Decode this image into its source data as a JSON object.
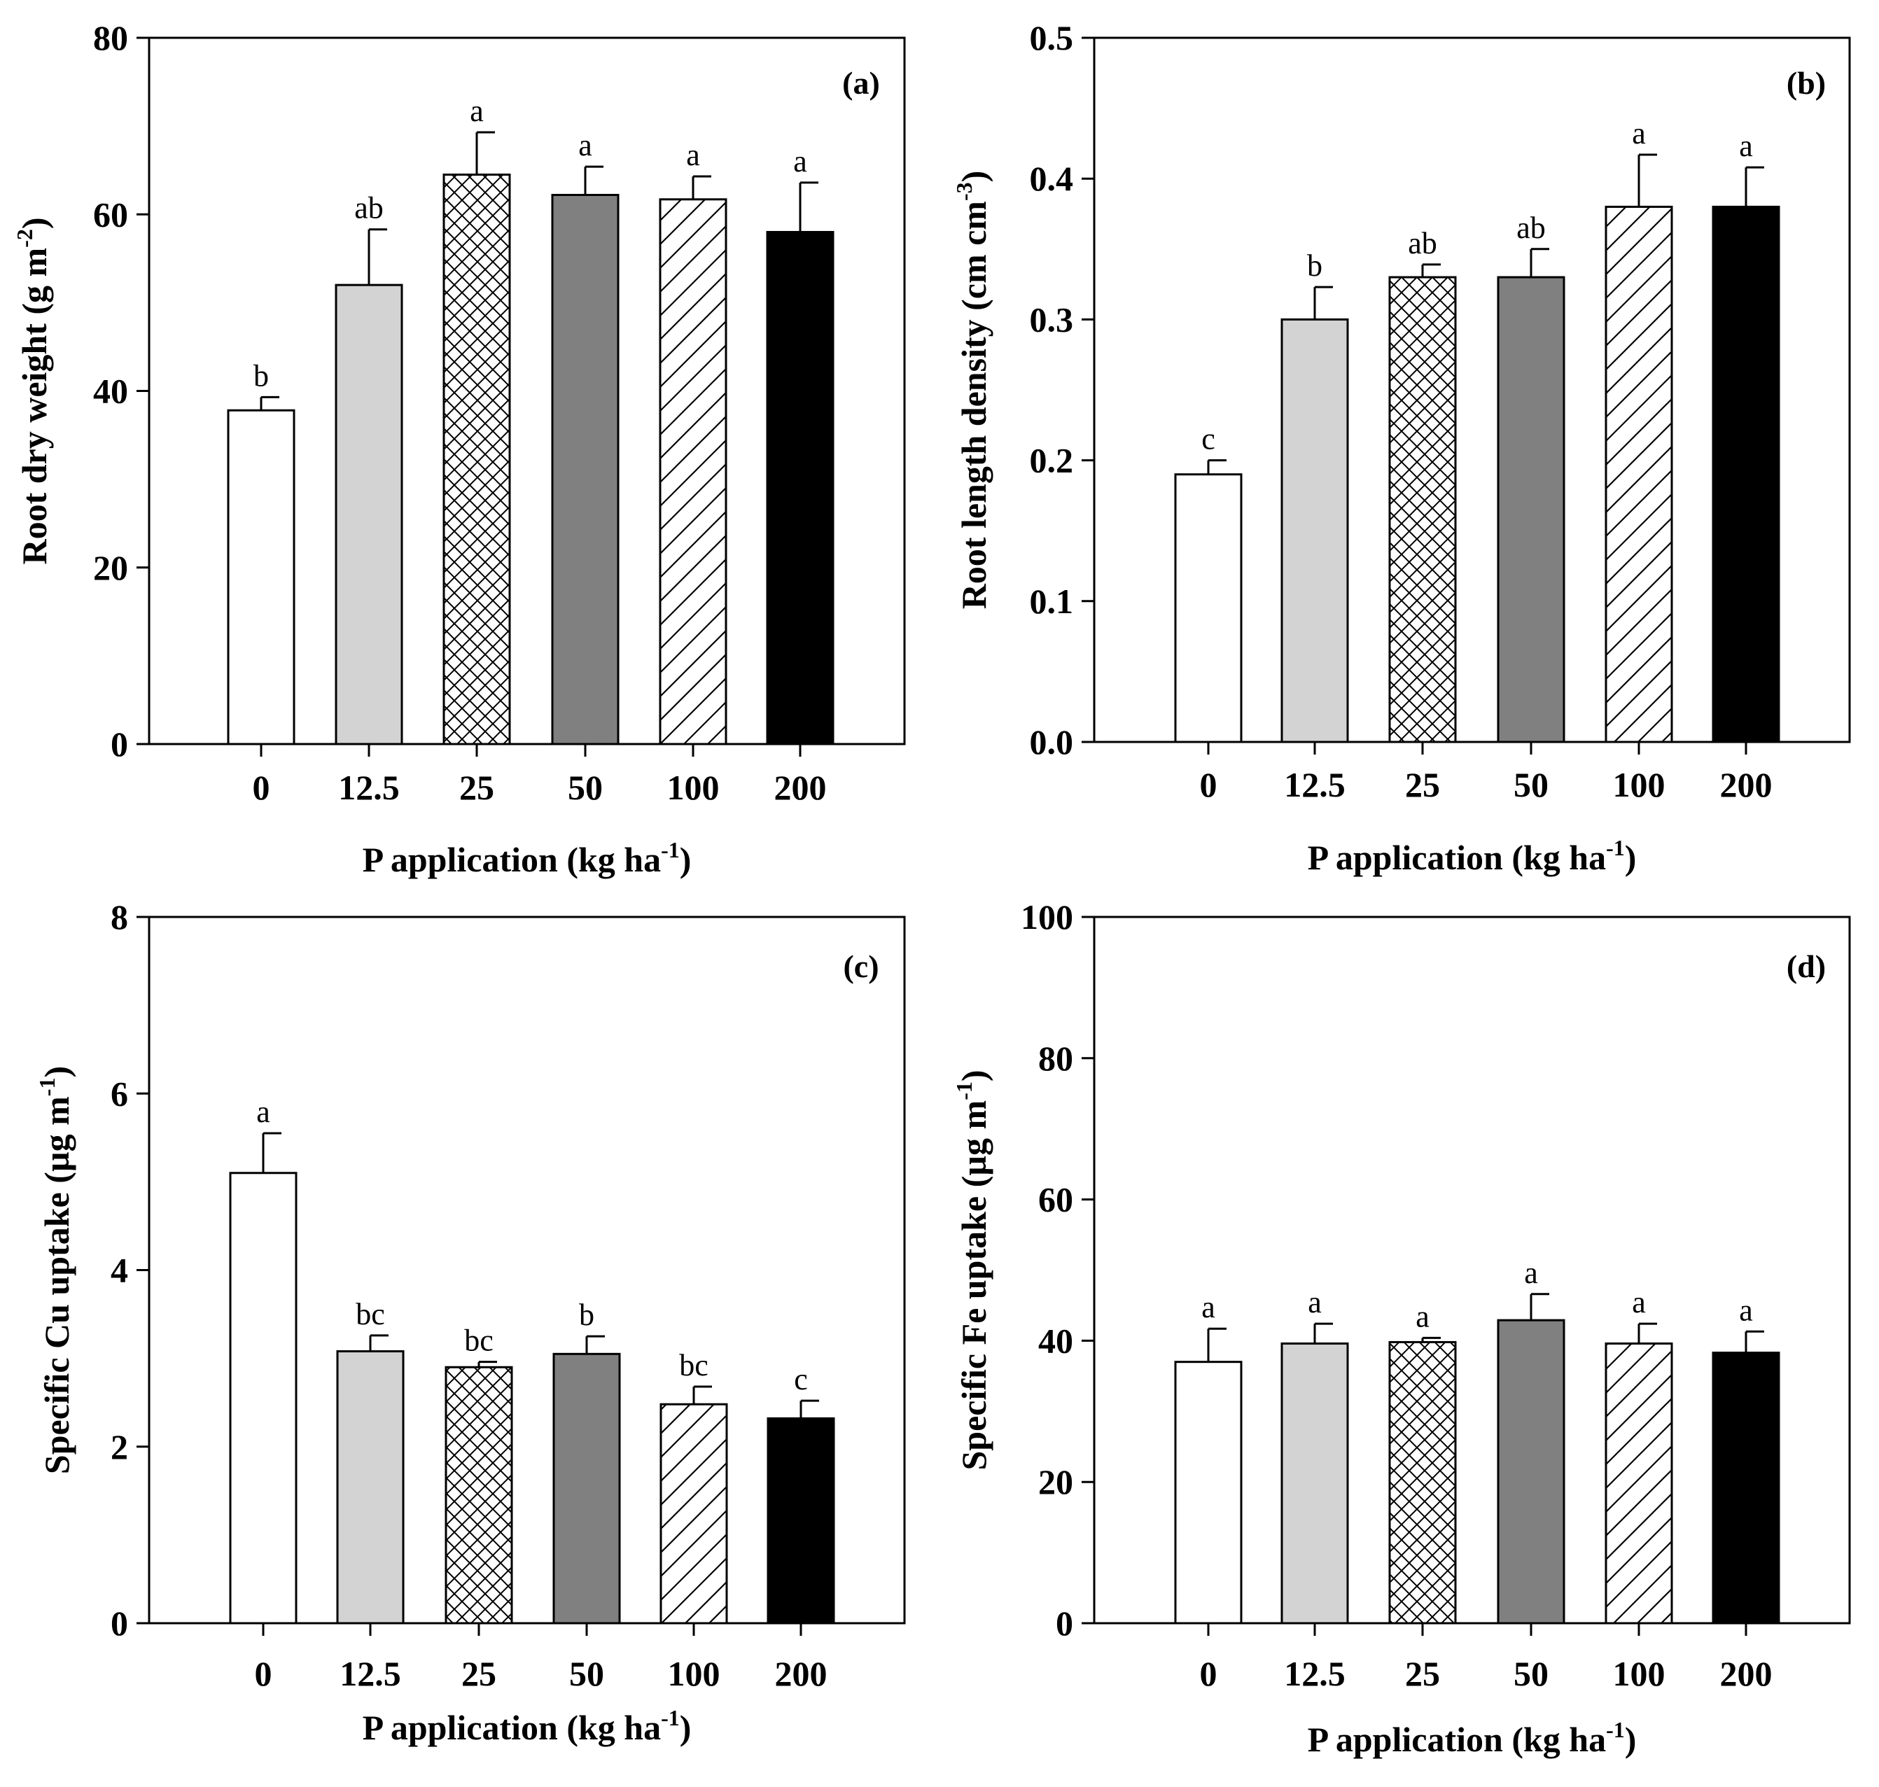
{
  "chart_data": [
    {
      "type": "bar",
      "panel_label": "(a)",
      "categories": [
        "0",
        "12.5",
        "25",
        "50",
        "100",
        "200"
      ],
      "values": [
        37.8,
        52.0,
        64.5,
        62.2,
        61.7,
        58.0
      ],
      "errors": [
        1.5,
        6.3,
        4.8,
        3.2,
        2.6,
        5.6
      ],
      "significance": [
        "b",
        "ab",
        "a",
        "a",
        "a",
        "a"
      ],
      "ylim": [
        0,
        80
      ],
      "yticks": [
        "0",
        "20",
        "40",
        "60",
        "80"
      ],
      "ylabel": {
        "text": "Root dry weight (g m",
        "sup": "-2",
        "tail": ")"
      },
      "xlabel": {
        "text": "P application (kg ha",
        "sup": "-1",
        "tail": ")"
      },
      "bar_styles": [
        "white",
        "light-gray",
        "crosshatch",
        "gray",
        "diagonal",
        "black"
      ],
      "colors": {
        "light_gray": "#d3d3d3",
        "gray": "#808080",
        "black": "#000000",
        "white": "#ffffff"
      }
    },
    {
      "type": "bar",
      "panel_label": "(b)",
      "categories": [
        "0",
        "12.5",
        "25",
        "50",
        "100",
        "200"
      ],
      "values": [
        0.19,
        0.3,
        0.33,
        0.33,
        0.38,
        0.38
      ],
      "errors": [
        0.01,
        0.023,
        0.009,
        0.02,
        0.037,
        0.028
      ],
      "significance": [
        "c",
        "b",
        "ab",
        "ab",
        "a",
        "a"
      ],
      "ylim": [
        0,
        0.5
      ],
      "yticks": [
        "0.0",
        "0.1",
        "0.2",
        "0.3",
        "0.4",
        "0.5"
      ],
      "ylabel": {
        "text": "Root length density (cm cm",
        "sup": "-3",
        "tail": ")"
      },
      "xlabel": {
        "text": "P application (kg ha",
        "sup": "-1",
        "tail": ")"
      },
      "bar_styles": [
        "white",
        "light-gray",
        "crosshatch",
        "gray",
        "diagonal",
        "black"
      ],
      "colors": {
        "light_gray": "#d3d3d3",
        "gray": "#808080",
        "black": "#000000",
        "white": "#ffffff"
      }
    },
    {
      "type": "bar",
      "panel_label": "(c)",
      "categories": [
        "0",
        "12.5",
        "25",
        "50",
        "100",
        "200"
      ],
      "values": [
        5.1,
        3.08,
        2.9,
        3.05,
        2.48,
        2.32
      ],
      "errors": [
        0.45,
        0.18,
        0.06,
        0.2,
        0.2,
        0.2
      ],
      "significance": [
        "a",
        "bc",
        "bc",
        "b",
        "bc",
        "c"
      ],
      "ylim": [
        0,
        8
      ],
      "yticks": [
        "0",
        "2",
        "4",
        "6",
        "8"
      ],
      "ylabel": {
        "text": "Specific Cu uptake (µg m",
        "sup": "-1",
        "tail": ")"
      },
      "xlabel": {
        "text": "P application (kg ha",
        "sup": "-1",
        "tail": ")"
      },
      "bar_styles": [
        "white",
        "light-gray",
        "crosshatch",
        "gray",
        "diagonal",
        "black"
      ],
      "colors": {
        "light_gray": "#d3d3d3",
        "gray": "#808080",
        "black": "#000000",
        "white": "#ffffff"
      }
    },
    {
      "type": "bar",
      "panel_label": "(d)",
      "categories": [
        "0",
        "12.5",
        "25",
        "50",
        "100",
        "200"
      ],
      "values": [
        37.0,
        39.6,
        39.8,
        42.9,
        39.6,
        38.3
      ],
      "errors": [
        4.7,
        2.8,
        0.6,
        3.7,
        2.8,
        3.0
      ],
      "significance": [
        "a",
        "a",
        "a",
        "a",
        "a",
        "a"
      ],
      "ylim": [
        0,
        100
      ],
      "yticks": [
        "0",
        "20",
        "40",
        "60",
        "80",
        "100"
      ],
      "ylabel": {
        "text": "Specific Fe uptake (µg m",
        "sup": "-1",
        "tail": ")"
      },
      "xlabel": {
        "text": "P application (kg ha",
        "sup": "-1",
        "tail": ")"
      },
      "bar_styles": [
        "white",
        "light-gray",
        "crosshatch",
        "gray",
        "diagonal",
        "black"
      ],
      "colors": {
        "light_gray": "#d3d3d3",
        "gray": "#808080",
        "black": "#000000",
        "white": "#ffffff"
      }
    }
  ]
}
